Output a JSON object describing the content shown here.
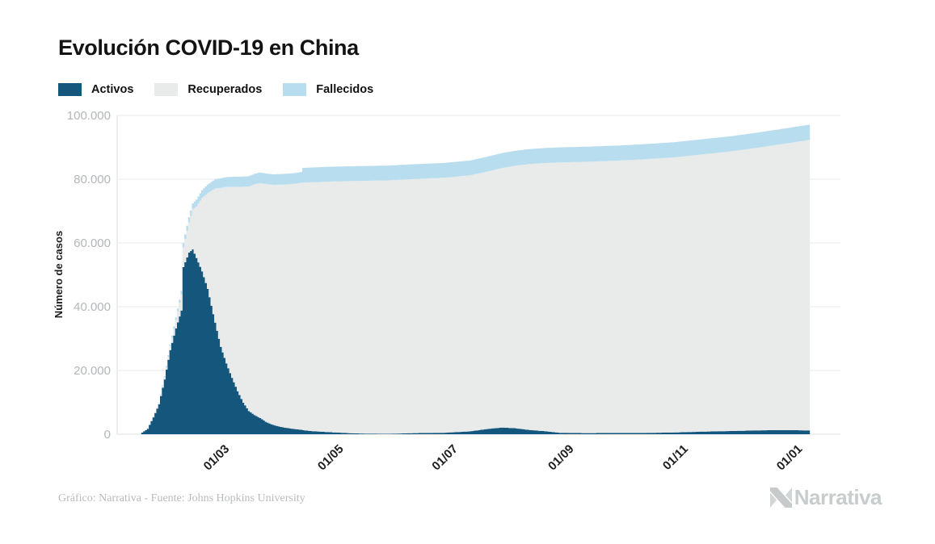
{
  "header": {
    "title": "Evolución COVID-19 en China"
  },
  "footer": {
    "credit": "Gráfico: Narrativa - Fuente: Johns Hopkins University",
    "brand": "Narrativa"
  },
  "chart_data": {
    "type": "bar",
    "stacked": true,
    "title": "Evolución COVID-19 en China",
    "xlabel": "",
    "ylabel": "Número de casos",
    "ylim": [
      0,
      100000
    ],
    "grid": "horizontal",
    "legend_position": "top-left",
    "start_date": "22/01/2020",
    "end_date": "12/01/2021",
    "days_total": 356,
    "series": [
      {
        "key": "activos",
        "name": "Activos",
        "color": "#15567D"
      },
      {
        "key": "recuperados",
        "name": "Recuperados",
        "color": "#E9EAEA"
      },
      {
        "key": "fallecidos",
        "name": "Fallecidos",
        "color": "#B7DDEE"
      }
    ],
    "y_axis": {
      "max": 100000,
      "ticks": [
        {
          "label": "0",
          "value": 0
        },
        {
          "label": "20.000",
          "value": 20000
        },
        {
          "label": "40.000",
          "value": 40000
        },
        {
          "label": "60.000",
          "value": 60000
        },
        {
          "label": "80.000",
          "value": 80000
        },
        {
          "label": "100.000",
          "value": 100000
        }
      ]
    },
    "x_axis": {
      "ticks": [
        {
          "label": "01/03",
          "day": 39
        },
        {
          "label": "01/05",
          "day": 100
        },
        {
          "label": "01/07",
          "day": 161
        },
        {
          "label": "01/09",
          "day": 223
        },
        {
          "label": "01/11",
          "day": 284
        },
        {
          "label": "01/01",
          "day": 345
        }
      ]
    },
    "points": [
      {
        "day": 0,
        "date": "22/01",
        "activos": 500,
        "recuperados": 30,
        "fallecidos": 20
      },
      {
        "day": 3,
        "date": "25/01",
        "activos": 1700,
        "recuperados": 60,
        "fallecidos": 60
      },
      {
        "day": 6,
        "date": "28/01",
        "activos": 5300,
        "recuperados": 110,
        "fallecidos": 130
      },
      {
        "day": 9,
        "date": "31/01",
        "activos": 9400,
        "recuperados": 220,
        "fallecidos": 215
      },
      {
        "day": 12,
        "date": "03/02",
        "activos": 17200,
        "recuperados": 630,
        "fallecidos": 360
      },
      {
        "day": 15,
        "date": "06/02",
        "activos": 26400,
        "recuperados": 1150,
        "fallecidos": 565
      },
      {
        "day": 18,
        "date": "09/02",
        "activos": 33200,
        "recuperados": 2650,
        "fallecidos": 810
      },
      {
        "day": 21,
        "date": "12/02",
        "activos": 38800,
        "recuperados": 5080,
        "fallecidos": 1110
      },
      {
        "day": 22,
        "date": "13/02",
        "activos": 52400,
        "recuperados": 6220,
        "fallecidos": 1370
      },
      {
        "day": 25,
        "date": "16/02",
        "activos": 57000,
        "recuperados": 9400,
        "fallecidos": 1665
      },
      {
        "day": 27,
        "date": "18/02",
        "activos": 58000,
        "recuperados": 12500,
        "fallecidos": 1870
      },
      {
        "day": 29,
        "date": "20/02",
        "activos": 55300,
        "recuperados": 16150,
        "fallecidos": 2130
      },
      {
        "day": 32,
        "date": "23/02",
        "activos": 51100,
        "recuperados": 23000,
        "fallecidos": 2445
      },
      {
        "day": 35,
        "date": "26/02",
        "activos": 45600,
        "recuperados": 30000,
        "fallecidos": 2715
      },
      {
        "day": 39,
        "date": "01/03",
        "activos": 35000,
        "recuperados": 42100,
        "fallecidos": 2870
      },
      {
        "day": 42,
        "date": "04/03",
        "activos": 27400,
        "recuperados": 49900,
        "fallecidos": 2980
      },
      {
        "day": 45,
        "date": "07/03",
        "activos": 22200,
        "recuperados": 55400,
        "fallecidos": 3070
      },
      {
        "day": 48,
        "date": "10/03",
        "activos": 17700,
        "recuperados": 59900,
        "fallecidos": 3140
      },
      {
        "day": 51,
        "date": "13/03",
        "activos": 13500,
        "recuperados": 64100,
        "fallecidos": 3180
      },
      {
        "day": 54,
        "date": "16/03",
        "activos": 9900,
        "recuperados": 67700,
        "fallecidos": 3220
      },
      {
        "day": 57,
        "date": "19/03",
        "activos": 7300,
        "recuperados": 70400,
        "fallecidos": 3250
      },
      {
        "day": 60,
        "date": "22/03",
        "activos": 6000,
        "recuperados": 72400,
        "fallecidos": 3270
      },
      {
        "day": 63,
        "date": "25/03",
        "activos": 5100,
        "recuperados": 73700,
        "fallecidos": 3290
      },
      {
        "day": 66,
        "date": "28/03",
        "activos": 3900,
        "recuperados": 74600,
        "fallecidos": 3300
      },
      {
        "day": 70,
        "date": "01/04",
        "activos": 2900,
        "recuperados": 75300,
        "fallecidos": 3312
      },
      {
        "day": 74,
        "date": "05/04",
        "activos": 2300,
        "recuperados": 76000,
        "fallecidos": 3330
      },
      {
        "day": 78,
        "date": "09/04",
        "activos": 1900,
        "recuperados": 76500,
        "fallecidos": 3335
      },
      {
        "day": 82,
        "date": "13/04",
        "activos": 1600,
        "recuperados": 77000,
        "fallecidos": 3339
      },
      {
        "day": 85,
        "date": "16/04",
        "activos": 1400,
        "recuperados": 77500,
        "fallecidos": 3342
      },
      {
        "day": 86,
        "date": "17/04",
        "activos": 1300,
        "recuperados": 77600,
        "fallecidos": 4632
      },
      {
        "day": 90,
        "date": "21/04",
        "activos": 1000,
        "recuperados": 78000,
        "fallecidos": 4636
      },
      {
        "day": 100,
        "date": "01/05",
        "activos": 650,
        "recuperados": 78600,
        "fallecidos": 4637
      },
      {
        "day": 114,
        "date": "15/05",
        "activos": 250,
        "recuperados": 79200,
        "fallecidos": 4638
      },
      {
        "day": 131,
        "date": "01/06",
        "activos": 120,
        "recuperados": 79500,
        "fallecidos": 4640
      },
      {
        "day": 145,
        "date": "15/06",
        "activos": 350,
        "recuperados": 79700,
        "fallecidos": 4642
      },
      {
        "day": 161,
        "date": "01/07",
        "activos": 450,
        "recuperados": 80000,
        "fallecidos": 4645
      },
      {
        "day": 175,
        "date": "15/07",
        "activos": 900,
        "recuperados": 80300,
        "fallecidos": 4650
      },
      {
        "day": 185,
        "date": "25/07",
        "activos": 1700,
        "recuperados": 80800,
        "fallecidos": 4665
      },
      {
        "day": 192,
        "date": "01/08",
        "activos": 2100,
        "recuperados": 81400,
        "fallecidos": 4685
      },
      {
        "day": 199,
        "date": "08/08",
        "activos": 1900,
        "recuperados": 82300,
        "fallecidos": 4695
      },
      {
        "day": 206,
        "date": "15/08",
        "activos": 1400,
        "recuperados": 83300,
        "fallecidos": 4705
      },
      {
        "day": 216,
        "date": "25/08",
        "activos": 900,
        "recuperados": 84200,
        "fallecidos": 4715
      },
      {
        "day": 223,
        "date": "01/09",
        "activos": 450,
        "recuperados": 84800,
        "fallecidos": 4725
      },
      {
        "day": 237,
        "date": "15/09",
        "activos": 350,
        "recuperados": 85100,
        "fallecidos": 4730
      },
      {
        "day": 253,
        "date": "01/10",
        "activos": 400,
        "recuperados": 85400,
        "fallecidos": 4735
      },
      {
        "day": 267,
        "date": "15/10",
        "activos": 400,
        "recuperados": 85800,
        "fallecidos": 4740
      },
      {
        "day": 284,
        "date": "01/11",
        "activos": 550,
        "recuperados": 86300,
        "fallecidos": 4745
      },
      {
        "day": 298,
        "date": "15/11",
        "activos": 800,
        "recuperados": 86900,
        "fallecidos": 4750
      },
      {
        "day": 314,
        "date": "01/12",
        "activos": 1000,
        "recuperados": 87700,
        "fallecidos": 4755
      },
      {
        "day": 328,
        "date": "15/12",
        "activos": 1200,
        "recuperados": 88600,
        "fallecidos": 4760
      },
      {
        "day": 338,
        "date": "25/12",
        "activos": 1300,
        "recuperados": 89400,
        "fallecidos": 4765
      },
      {
        "day": 345,
        "date": "01/01",
        "activos": 1300,
        "recuperados": 90000,
        "fallecidos": 4770
      },
      {
        "day": 356,
        "date": "12/01",
        "activos": 1200,
        "recuperados": 91100,
        "fallecidos": 4790
      }
    ]
  }
}
